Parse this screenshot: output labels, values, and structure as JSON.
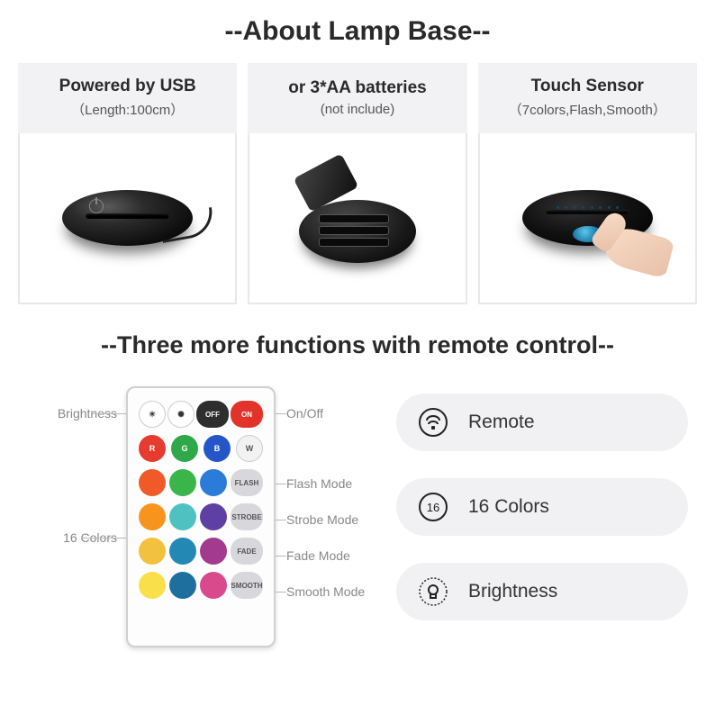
{
  "title": "--About Lamp Base--",
  "cards": [
    {
      "h1": "Powered by USB",
      "h2": "（Length:100cm）"
    },
    {
      "h1": "or 3*AA batteries",
      "h2": "(not include)"
    },
    {
      "h1": "Touch Sensor",
      "h2": "（7colors,Flash,Smooth）"
    }
  ],
  "subtitle": "--Three more functions with remote control--",
  "annotations": {
    "brightness": "Brightness",
    "sixteen": "16 Colors",
    "onoff": "On/Off",
    "flash": "Flash Mode",
    "strobe": "Strobe Mode",
    "fade": "Fade Mode",
    "smooth": "Smooth Mode"
  },
  "remote": {
    "row0": [
      {
        "bg": "#ffffff",
        "fg": "#333",
        "symbol": "☀"
      },
      {
        "bg": "#ffffff",
        "fg": "#333",
        "symbol": "✺"
      },
      {
        "bg": "#2e2e2e",
        "label": "OFF"
      },
      {
        "bg": "#e2332a",
        "label": "ON"
      }
    ],
    "row1": [
      {
        "bg": "#e63b2e",
        "label": "R"
      },
      {
        "bg": "#2fa84a",
        "label": "G"
      },
      {
        "bg": "#2556c7",
        "label": "B"
      },
      {
        "bg": "#f2f2f2",
        "fg": "#555",
        "label": "W"
      }
    ],
    "color_rows": [
      [
        "#f05a28",
        "#39b54a",
        "#2b7bd9",
        "_FLASH"
      ],
      [
        "#f7941d",
        "#4fc1c1",
        "#5e3fa3",
        "_STROBE"
      ],
      [
        "#f2c23e",
        "#2488b5",
        "#a23b8e",
        "_FADE"
      ],
      [
        "#f9e04b",
        "#1f6f9e",
        "#d94a8c",
        "_SMOOTH"
      ]
    ],
    "mode_labels": {
      "_FLASH": "FLASH",
      "_STROBE": "STROBE",
      "_FADE": "FADE",
      "_SMOOTH": "SMOOTH"
    }
  },
  "pills": [
    {
      "icon": "remote",
      "label": "Remote"
    },
    {
      "icon": "sixteen",
      "label": "16 Colors"
    },
    {
      "icon": "bulb",
      "label": "Brightness"
    }
  ],
  "colors": {
    "pill_bg": "#f1f1f3",
    "header_bg": "#f2f2f4",
    "border": "#e8e8ea",
    "text": "#2a2a2a",
    "anno": "#888888"
  }
}
